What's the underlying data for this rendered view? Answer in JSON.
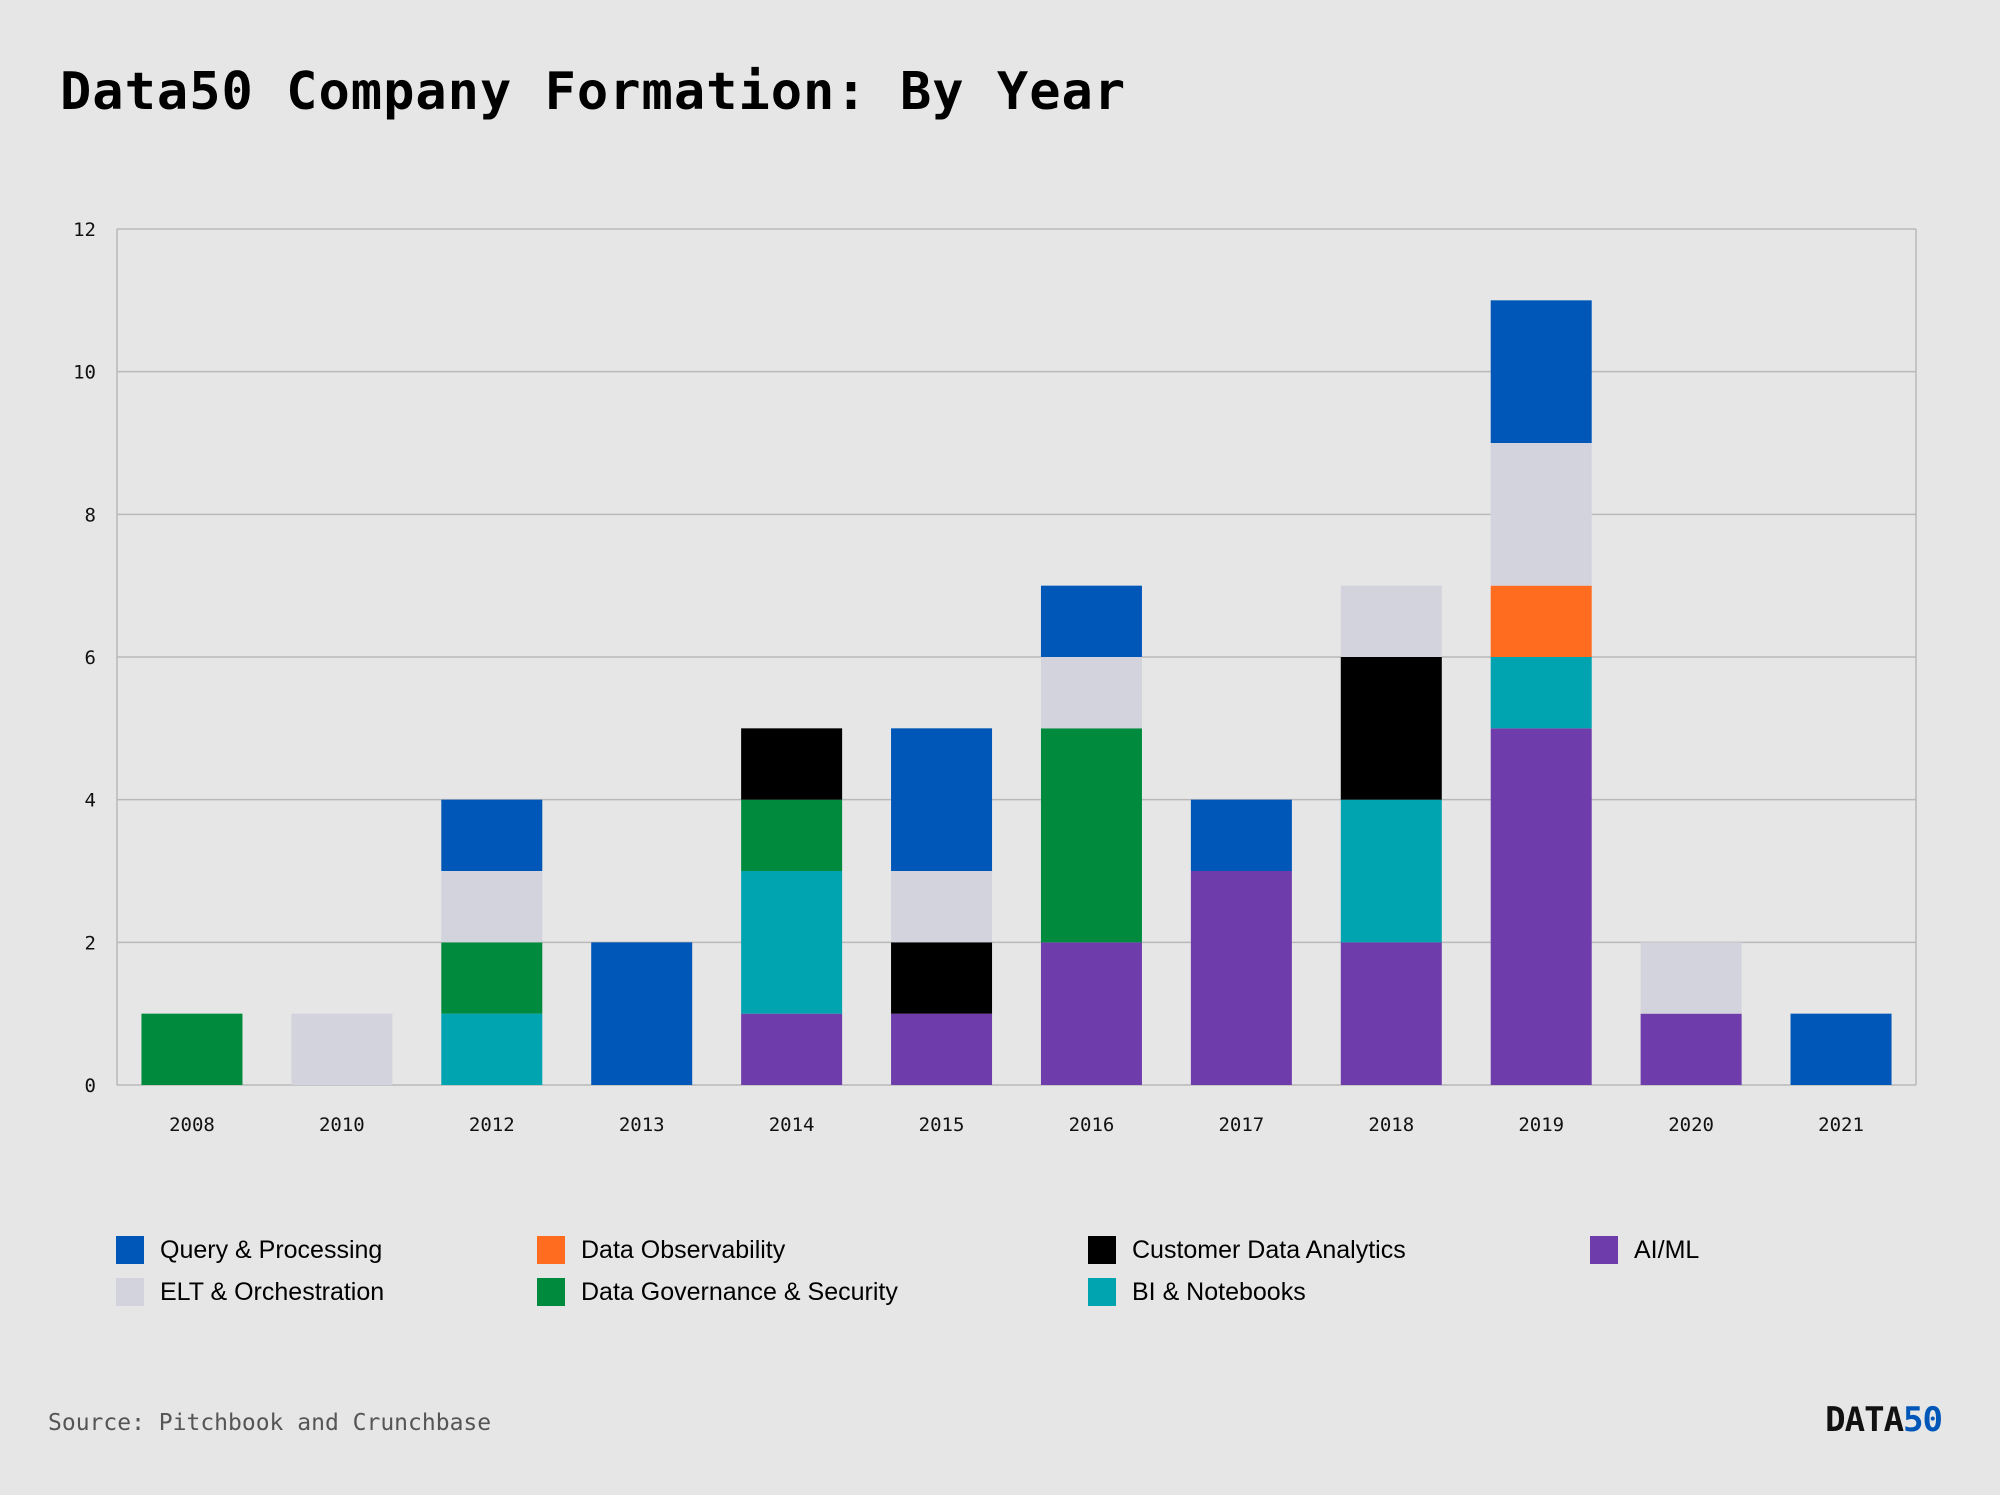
{
  "title": "Data50 Company Formation: By Year",
  "source": "Source: Pitchbook and Crunchbase",
  "brand": {
    "part1": "DATA",
    "part2": "50"
  },
  "chart_data": {
    "type": "bar",
    "stacked": true,
    "categories": [
      "2008",
      "2010",
      "2012",
      "2013",
      "2014",
      "2015",
      "2016",
      "2017",
      "2018",
      "2019",
      "2020",
      "2021"
    ],
    "ylim": [
      0,
      12
    ],
    "yticks": [
      0,
      2,
      4,
      6,
      8,
      10,
      12
    ],
    "grid": true,
    "legend_position": "bottom",
    "series": [
      {
        "name": "AI/ML",
        "color": "#6f3dab",
        "values": [
          0,
          0,
          0,
          0,
          1,
          1,
          2,
          3,
          2,
          5,
          1,
          0
        ]
      },
      {
        "name": "BI & Notebooks",
        "color": "#00a3b0",
        "values": [
          0,
          0,
          1,
          0,
          2,
          0,
          0,
          0,
          2,
          1,
          0,
          0
        ]
      },
      {
        "name": "Data Governance & Security",
        "color": "#008a3e",
        "values": [
          1,
          0,
          1,
          0,
          1,
          0,
          3,
          0,
          0,
          0,
          0,
          0
        ]
      },
      {
        "name": "Customer Data Analytics",
        "color": "#000000",
        "values": [
          0,
          0,
          0,
          0,
          1,
          1,
          0,
          0,
          2,
          0,
          0,
          0
        ]
      },
      {
        "name": "Data Observability",
        "color": "#ff6b1f",
        "values": [
          0,
          0,
          0,
          0,
          0,
          0,
          0,
          0,
          0,
          1,
          0,
          0
        ]
      },
      {
        "name": "ELT & Orchestration",
        "color": "#d3d3dd",
        "values": [
          0,
          1,
          1,
          0,
          0,
          1,
          1,
          0,
          1,
          2,
          1,
          0
        ]
      },
      {
        "name": "Query & Processing",
        "color": "#0057b8",
        "values": [
          0,
          0,
          1,
          2,
          0,
          2,
          1,
          1,
          0,
          2,
          0,
          1
        ]
      }
    ]
  },
  "legend": [
    {
      "label": "Query & Processing",
      "color": "#0057b8"
    },
    {
      "label": "Data Observability",
      "color": "#ff6b1f"
    },
    {
      "label": "Customer Data Analytics",
      "color": "#000000"
    },
    {
      "label": "AI/ML",
      "color": "#6f3dab"
    },
    {
      "label": "ELT & Orchestration",
      "color": "#d3d3dd"
    },
    {
      "label": "Data Governance & Security",
      "color": "#008a3e"
    },
    {
      "label": "BI & Notebooks",
      "color": "#00a3b0"
    }
  ]
}
